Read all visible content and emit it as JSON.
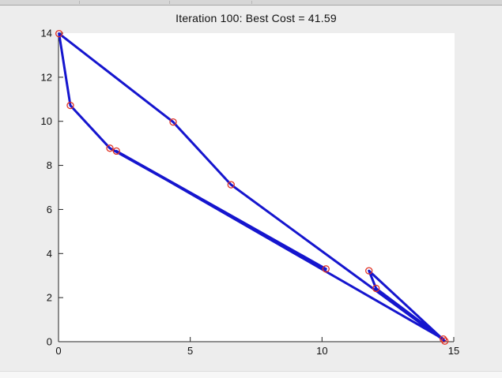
{
  "figure": {
    "title": "Iteration 100: Best Cost = 41.59",
    "background_color": "#ededed",
    "plot_background_color": "#ffffff",
    "iteration": 100,
    "best_cost": 41.59
  },
  "chart_data": {
    "type": "line",
    "subtype": "closed-tour",
    "title": "Iteration 100: Best Cost = 41.59",
    "xlabel": "",
    "ylabel": "",
    "xlim": [
      0,
      15
    ],
    "ylim": [
      0,
      14
    ],
    "xticks": [
      0,
      5,
      10,
      15
    ],
    "yticks": [
      0,
      2,
      4,
      6,
      8,
      10,
      12,
      14
    ],
    "grid": false,
    "legend_position": "none",
    "axis_color": "#222222",
    "series": [
      {
        "name": "best-tour",
        "closed": true,
        "line_color": "#1515CE",
        "line_width": 3,
        "marker": "open-circle",
        "marker_color": "#E03224",
        "marker_radius": 4,
        "points": [
          [
            0.02,
            13.98
          ],
          [
            0.45,
            10.72
          ],
          [
            1.95,
            8.78
          ],
          [
            10.15,
            3.3
          ],
          [
            2.2,
            8.65
          ],
          [
            14.6,
            0.12
          ],
          [
            12.05,
            2.42
          ],
          [
            11.78,
            3.22
          ],
          [
            14.66,
            0.03
          ],
          [
            6.55,
            7.12
          ],
          [
            4.35,
            9.97
          ]
        ]
      }
    ]
  }
}
